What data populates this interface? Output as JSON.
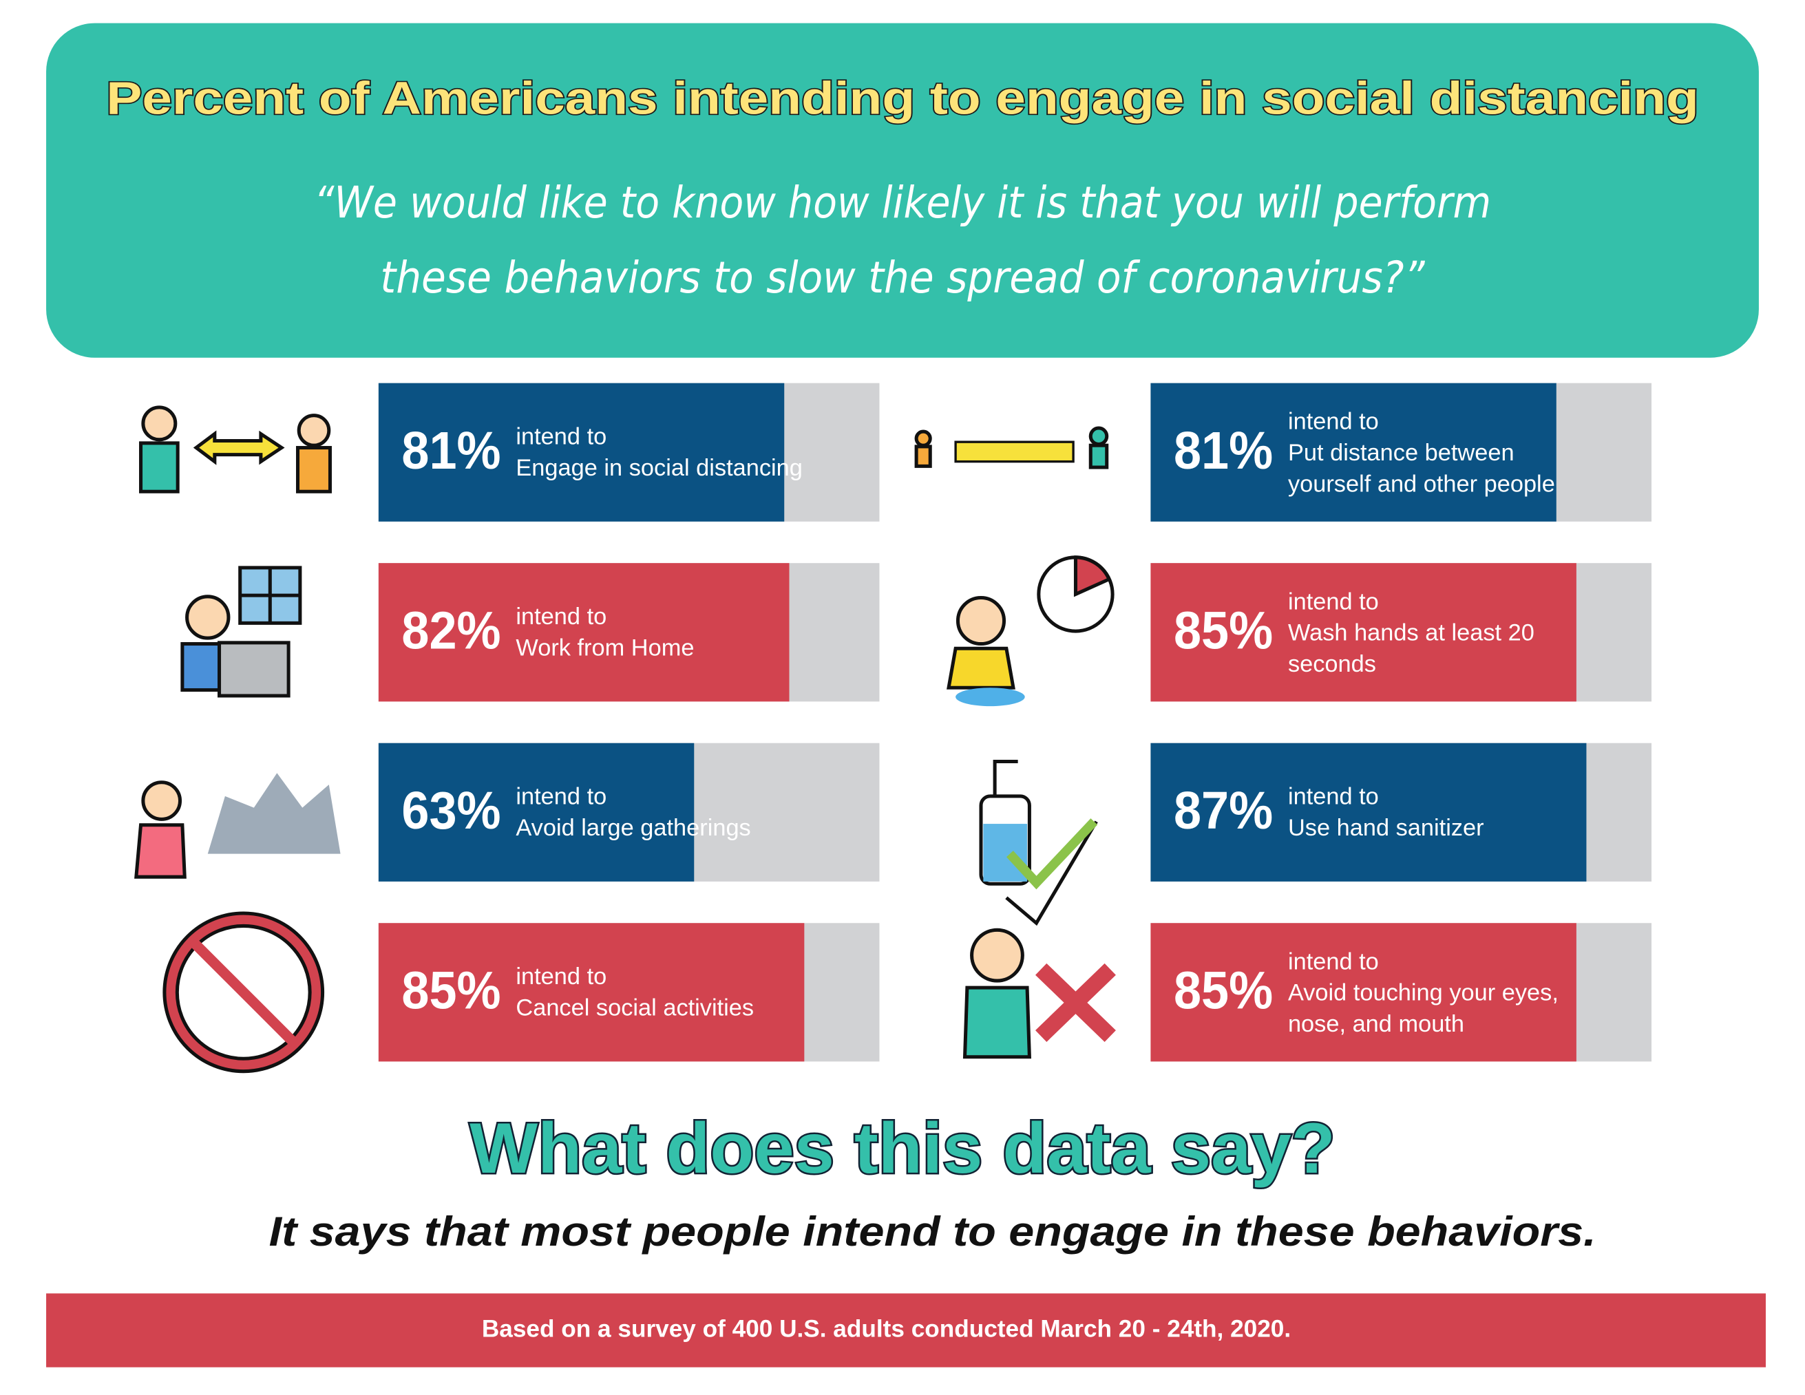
{
  "chart_data": {
    "type": "bar",
    "title": "Percent of Americans intending to engage in social distancing",
    "subtitle_lines": [
      "“We would like to know how likely it is that you will perform",
      "these behaviors to slow the spread of coronavirus?”"
    ],
    "label_prefix": "intend to",
    "categories": [
      "Engage in social distancing",
      "Work from Home",
      "Avoid large gatherings",
      "Cancel social activities",
      "Put distance between yourself and other people",
      "Wash hands at least 20 seconds",
      "Use hand sanitizer",
      "Avoid touching your eyes, nose, and mouth"
    ],
    "values": [
      81,
      82,
      63,
      85,
      81,
      85,
      87,
      85
    ],
    "value_labels": [
      "81%",
      "82%",
      "63%",
      "85%",
      "81%",
      "85%",
      "87%",
      "85%"
    ],
    "colors": [
      "#0b5283",
      "#d2434f",
      "#0b5283",
      "#d2434f",
      "#0b5283",
      "#d2434f",
      "#0b5283",
      "#d2434f"
    ],
    "track_color": "#d1d2d4",
    "xlim": [
      0,
      100
    ],
    "question": "What does this data say?",
    "answer": "It says that most people intend to engage in these behaviors.",
    "footnote": "Based on a survey of 400 U.S. adults conducted March 20 - 24th, 2020."
  }
}
